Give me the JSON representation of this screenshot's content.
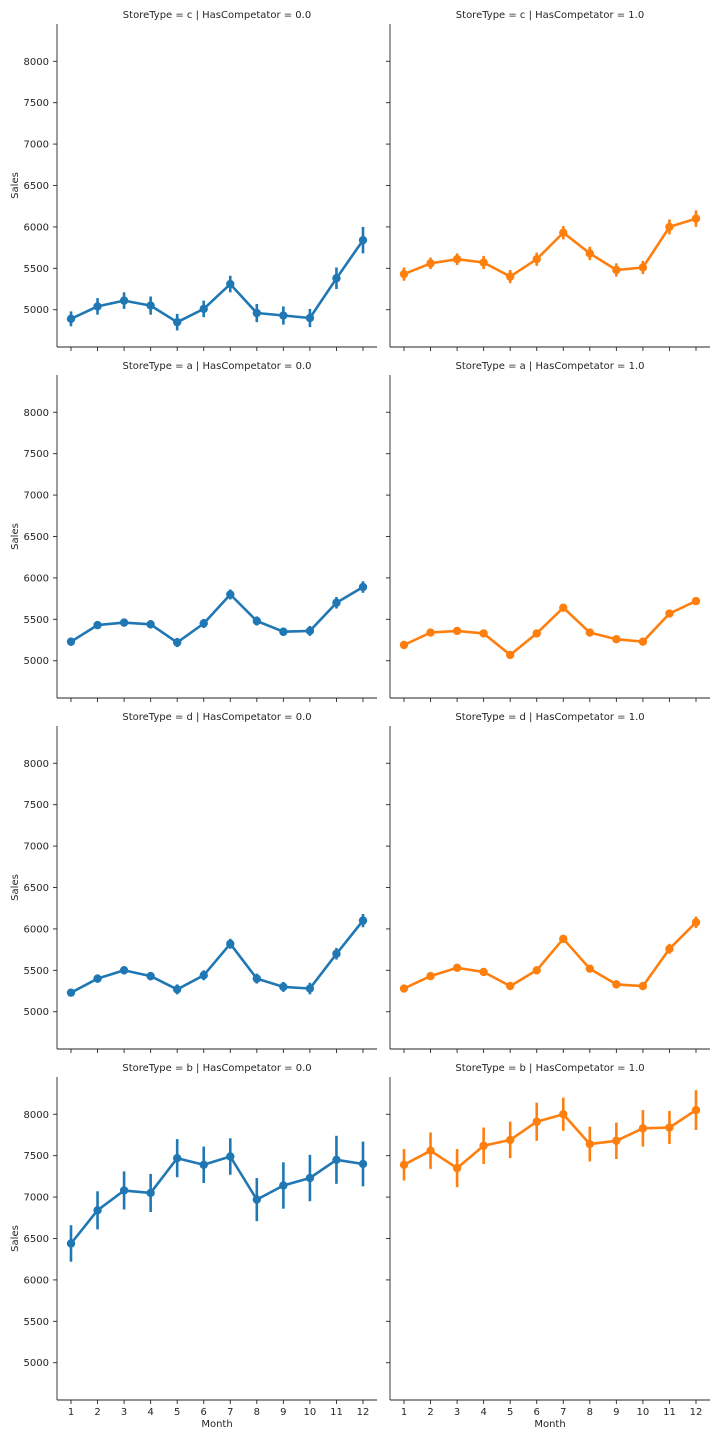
{
  "chart_data": {
    "type": "line",
    "layout": "facet-grid",
    "rows": 4,
    "cols": 2,
    "xlabel": "Month",
    "ylabel": "Sales",
    "ylim": [
      4550,
      8450
    ],
    "yticks": [
      5000,
      5500,
      6000,
      6500,
      7000,
      7500,
      8000
    ],
    "x": [
      "1",
      "2",
      "3",
      "4",
      "5",
      "6",
      "7",
      "8",
      "9",
      "10",
      "11",
      "12"
    ],
    "colors": {
      "HasCompetator = 0.0": "#1f77b4",
      "HasCompetator = 1.0": "#ff7f0e"
    },
    "panels": [
      {
        "title": "StoreType = c | HasCompetator = 0.0",
        "color": "#1f77b4",
        "values": [
          4890,
          5040,
          5110,
          5050,
          4850,
          5010,
          5310,
          4960,
          4930,
          4900,
          5380,
          5840
        ],
        "errors": [
          90,
          100,
          100,
          110,
          100,
          100,
          100,
          110,
          110,
          110,
          130,
          160
        ]
      },
      {
        "title": "StoreType = c | HasCompetator = 1.0",
        "color": "#ff7f0e",
        "values": [
          5430,
          5560,
          5610,
          5570,
          5400,
          5610,
          5930,
          5680,
          5480,
          5510,
          6000,
          6100
        ],
        "errors": [
          80,
          70,
          70,
          80,
          80,
          80,
          80,
          80,
          80,
          80,
          90,
          100
        ]
      },
      {
        "title": "StoreType = a | HasCompetator = 0.0",
        "color": "#1f77b4",
        "values": [
          5230,
          5430,
          5460,
          5440,
          5220,
          5450,
          5800,
          5480,
          5350,
          5360,
          5700,
          5890
        ],
        "errors": [
          50,
          45,
          45,
          50,
          55,
          55,
          60,
          55,
          50,
          60,
          70,
          70
        ]
      },
      {
        "title": "StoreType = a | HasCompetator = 1.0",
        "color": "#ff7f0e",
        "values": [
          5190,
          5340,
          5360,
          5330,
          5070,
          5330,
          5640,
          5340,
          5260,
          5230,
          5570,
          5720
        ],
        "errors": [
          25,
          25,
          25,
          25,
          25,
          25,
          30,
          25,
          25,
          25,
          30,
          30
        ]
      },
      {
        "title": "StoreType = d | HasCompetator = 0.0",
        "color": "#1f77b4",
        "values": [
          5230,
          5400,
          5500,
          5430,
          5270,
          5440,
          5820,
          5400,
          5300,
          5280,
          5700,
          6100
        ],
        "errors": [
          40,
          50,
          50,
          50,
          60,
          60,
          60,
          60,
          60,
          70,
          70,
          80
        ]
      },
      {
        "title": "StoreType = d | HasCompetator = 1.0",
        "color": "#ff7f0e",
        "values": [
          5280,
          5430,
          5530,
          5480,
          5310,
          5500,
          5880,
          5520,
          5330,
          5310,
          5760,
          6080
        ],
        "errors": [
          30,
          35,
          35,
          40,
          40,
          45,
          45,
          45,
          50,
          50,
          60,
          70
        ]
      },
      {
        "title": "StoreType = b | HasCompetator = 0.0",
        "color": "#1f77b4",
        "values": [
          6440,
          6840,
          7080,
          7050,
          7470,
          7390,
          7490,
          6970,
          7140,
          7230,
          7450,
          7400
        ],
        "errors": [
          220,
          230,
          230,
          230,
          230,
          220,
          220,
          260,
          280,
          280,
          290,
          270
        ]
      },
      {
        "title": "StoreType = b | HasCompetator = 1.0",
        "color": "#ff7f0e",
        "values": [
          7390,
          7560,
          7350,
          7620,
          7690,
          7910,
          8000,
          7640,
          7680,
          7830,
          7840,
          8050
        ],
        "errors": [
          190,
          220,
          230,
          220,
          220,
          230,
          200,
          210,
          220,
          220,
          200,
          240
        ]
      }
    ]
  }
}
